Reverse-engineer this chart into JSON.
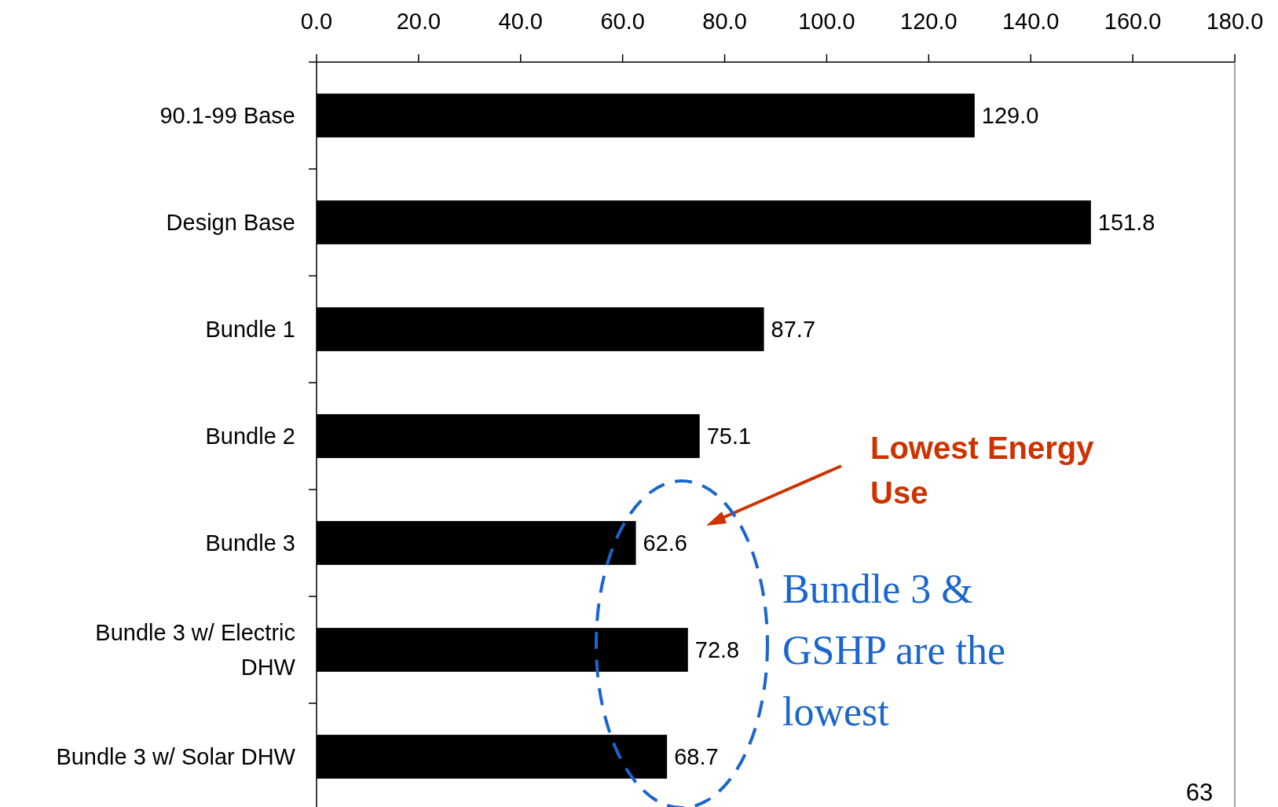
{
  "chart_data": {
    "type": "bar",
    "orientation": "horizontal",
    "categories": [
      "90.1-99 Base",
      "Design Base",
      "Bundle 1",
      "Bundle 2",
      "Bundle 3",
      "Bundle 3 w/ Electric DHW",
      "Bundle 3 w/ Solar DHW"
    ],
    "values": [
      129.0,
      151.8,
      87.7,
      75.1,
      62.6,
      72.8,
      68.7
    ],
    "value_labels": [
      "129.0",
      "151.8",
      "87.7",
      "75.1",
      "62.6",
      "72.8",
      "68.7"
    ],
    "color": "#000000",
    "xlim": [
      0,
      180
    ],
    "xticks": [
      {
        "value": 0,
        "label": "0.0"
      },
      {
        "value": 20,
        "label": "20.0"
      },
      {
        "value": 40,
        "label": "40.0"
      },
      {
        "value": 60,
        "label": "60.0"
      },
      {
        "value": 80,
        "label": "80.0"
      },
      {
        "value": 100,
        "label": "100.0"
      },
      {
        "value": 120,
        "label": "120.0"
      },
      {
        "value": 140,
        "label": "140.0"
      },
      {
        "value": 160,
        "label": "160.0"
      },
      {
        "value": 180,
        "label": "180.0"
      }
    ],
    "grid": false,
    "annotations": [
      "Lowest Energy Use",
      "Bundle 3 & GSHP are the lowest",
      "63"
    ]
  }
}
